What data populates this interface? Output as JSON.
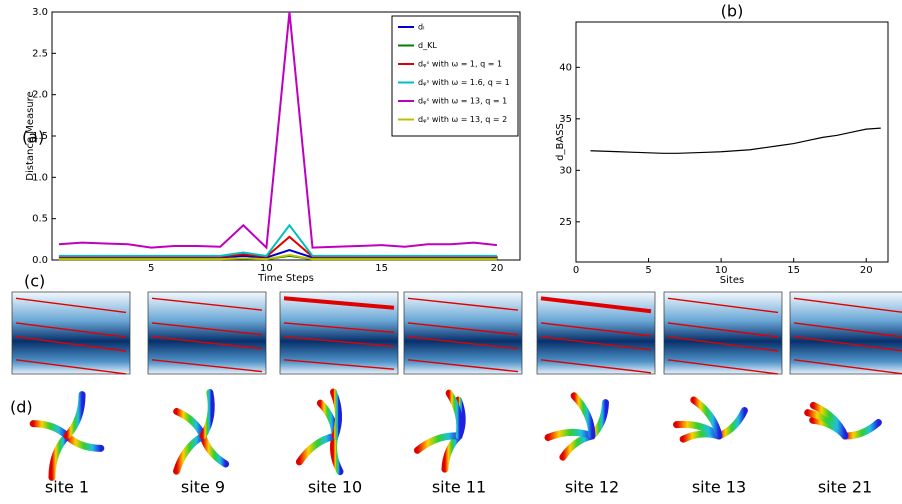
{
  "chart_data": [
    {
      "type": "line",
      "title": "(a)",
      "x_label": "Time Steps",
      "y_label": "Distance Measure",
      "x": [
        1,
        2,
        3,
        4,
        5,
        6,
        7,
        8,
        9,
        10,
        11,
        12,
        13,
        14,
        15,
        16,
        17,
        18,
        19,
        20
      ],
      "xlim": [
        0.7,
        21
      ],
      "xticks": [
        5,
        10,
        15,
        20
      ],
      "ylim": [
        0,
        3
      ],
      "yticks": [
        {
          "value": 0,
          "label": "0.0"
        },
        {
          "value": 0.5,
          "label": "0.5"
        },
        {
          "value": 1,
          "label": "1.0"
        },
        {
          "value": 1.5,
          "label": "1.5"
        },
        {
          "value": 2,
          "label": "2.0"
        },
        {
          "value": 2.5,
          "label": "2.5"
        },
        {
          "value": 3,
          "label": "3.0"
        }
      ],
      "legend": "upper right",
      "series": [
        {
          "name": "dₗ",
          "color": "#0000cc",
          "values": [
            0.03,
            0.03,
            0.03,
            0.03,
            0.03,
            0.03,
            0.03,
            0.03,
            0.05,
            0.03,
            0.12,
            0.03,
            0.03,
            0.03,
            0.03,
            0.03,
            0.03,
            0.03,
            0.03,
            0.03
          ]
        },
        {
          "name": "d_KL",
          "color": "#007f00",
          "values": [
            0.01,
            0.01,
            0.01,
            0.01,
            0.01,
            0.01,
            0.01,
            0.01,
            0.02,
            0.01,
            0.05,
            0.01,
            0.01,
            0.01,
            0.01,
            0.01,
            0.01,
            0.01,
            0.01,
            0.01
          ]
        },
        {
          "name": "dᵩˢ with ω = 1, q = 1",
          "color": "#e00000",
          "values": [
            0.04,
            0.04,
            0.04,
            0.04,
            0.04,
            0.04,
            0.04,
            0.04,
            0.07,
            0.04,
            0.28,
            0.04,
            0.04,
            0.04,
            0.04,
            0.04,
            0.04,
            0.04,
            0.04,
            0.04
          ]
        },
        {
          "name": "dᵩˢ with ω = 1.6, q = 1",
          "color": "#00bfbf",
          "values": [
            0.05,
            0.05,
            0.05,
            0.05,
            0.05,
            0.05,
            0.05,
            0.05,
            0.09,
            0.05,
            0.42,
            0.05,
            0.05,
            0.05,
            0.05,
            0.05,
            0.05,
            0.05,
            0.05,
            0.05
          ]
        },
        {
          "name": "dᵩˢ with ω = 13, q = 1",
          "color": "#bf00bf",
          "values": [
            0.19,
            0.21,
            0.2,
            0.19,
            0.15,
            0.17,
            0.17,
            0.16,
            0.42,
            0.15,
            3.0,
            0.15,
            0.16,
            0.17,
            0.18,
            0.16,
            0.19,
            0.19,
            0.21,
            0.18
          ]
        },
        {
          "name": "dᵩˢ with ω = 13, q = 2",
          "color": "#bfbf00",
          "values": [
            0.01,
            0.01,
            0.01,
            0.01,
            0.01,
            0.01,
            0.01,
            0.01,
            0.02,
            0.01,
            0.06,
            0.01,
            0.01,
            0.01,
            0.01,
            0.01,
            0.01,
            0.01,
            0.01,
            0.01
          ]
        }
      ]
    },
    {
      "type": "line",
      "title": "(b)",
      "x_label": "Sites",
      "y_label": "d_BASS",
      "x": [
        1,
        2,
        3,
        4,
        5,
        6,
        7,
        8,
        9,
        10,
        11,
        12,
        13,
        14,
        15,
        16,
        17,
        18,
        19,
        20,
        21
      ],
      "xlim": [
        0,
        21.5
      ],
      "xticks": [
        0,
        5,
        10,
        15,
        20
      ],
      "ylim": [
        21.1,
        44.4
      ],
      "yticks": [
        25,
        30,
        35,
        40
      ],
      "series": [
        {
          "color": "#000000",
          "values": [
            31.9,
            31.85,
            31.8,
            31.75,
            31.7,
            31.65,
            31.65,
            31.7,
            31.75,
            31.8,
            31.9,
            32.0,
            32.2,
            32.4,
            32.6,
            32.9,
            33.2,
            33.4,
            33.7,
            34.0,
            34.1
          ]
        }
      ]
    }
  ],
  "figure": {
    "labels": [
      "(c)",
      "(d)"
    ],
    "sites": [
      "site 1",
      "site 9",
      "site 10",
      "site 11",
      "site 12",
      "site 13",
      "site 21"
    ]
  }
}
